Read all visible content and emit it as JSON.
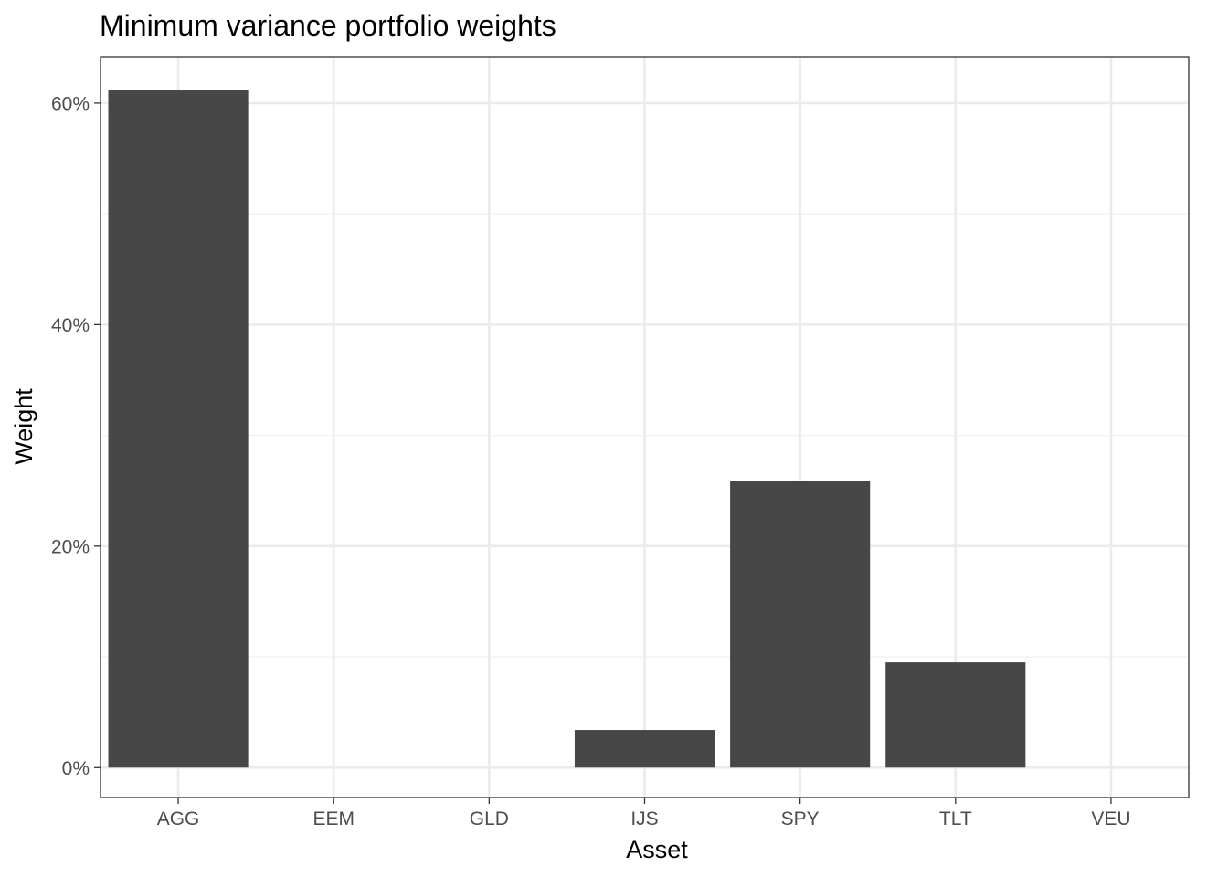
{
  "chart_data": {
    "type": "bar",
    "title": "Minimum variance portfolio weights",
    "xlabel": "Asset",
    "ylabel": "Weight",
    "categories": [
      "AGG",
      "EEM",
      "GLD",
      "IJS",
      "SPY",
      "TLT",
      "VEU"
    ],
    "values": [
      0.612,
      0.0,
      0.0,
      0.034,
      0.259,
      0.095,
      0.0
    ],
    "ylim": [
      -0.027,
      0.642
    ],
    "yticks": [
      0,
      0.2,
      0.4,
      0.6
    ],
    "ytick_labels": [
      "0%",
      "20%",
      "40%",
      "60%"
    ],
    "grid": true,
    "legend": "none",
    "colors": {
      "bar": "#474747",
      "panel_border": "#333333",
      "grid_major": "#ebebeb",
      "grid_minor": "#f2f2f2",
      "tick_text": "#4d4d4d",
      "tick_mark": "#333333"
    }
  }
}
